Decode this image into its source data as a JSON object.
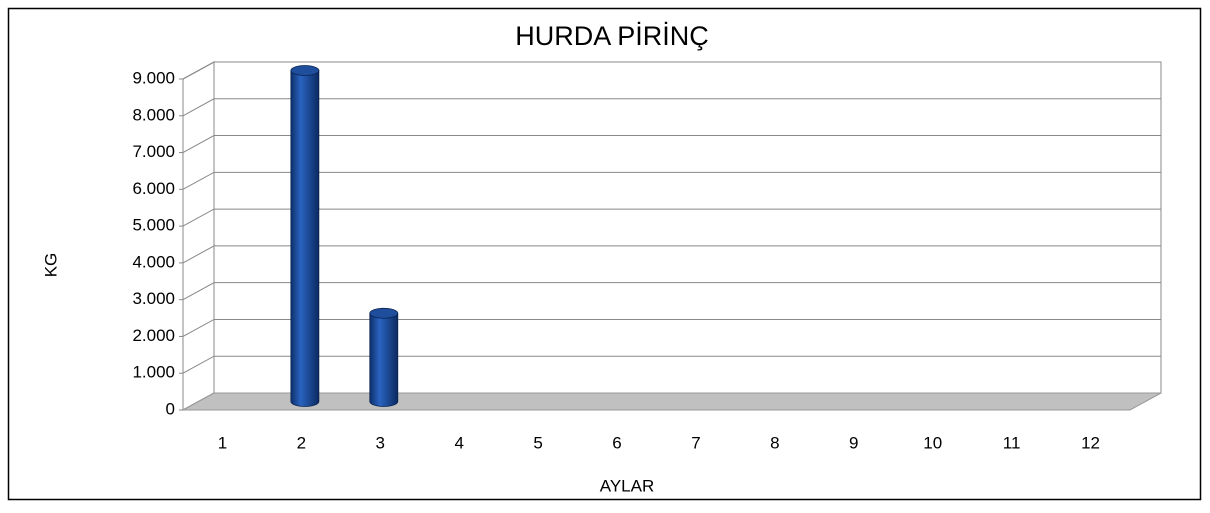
{
  "chart_data": {
    "type": "bar3d",
    "title": "HURDA PİRİNÇ",
    "x_label": "AYLAR",
    "y_label": "KG",
    "categories": [
      "1",
      "2",
      "3",
      "4",
      "5",
      "6",
      "7",
      "8",
      "9",
      "10",
      "11",
      "12"
    ],
    "values": [
      0,
      9000,
      2400,
      0,
      0,
      0,
      0,
      0,
      0,
      0,
      0,
      0
    ],
    "color": "#1f4e9c",
    "ylim": [
      0,
      9000
    ],
    "yticks": [
      0,
      {
        "value": 1000,
        "label": "1.000"
      },
      {
        "value": 2000,
        "label": "2.000"
      },
      {
        "value": 3000,
        "label": "3.000"
      },
      {
        "value": 4000,
        "label": "4.000"
      },
      {
        "value": 5000,
        "label": "5.000"
      },
      {
        "value": 6000,
        "label": "6.000"
      },
      {
        "value": 7000,
        "label": "7.000"
      },
      {
        "value": 8000,
        "label": "8.000"
      },
      {
        "value": 9000,
        "label": "9.000"
      }
    ],
    "grid": true
  }
}
